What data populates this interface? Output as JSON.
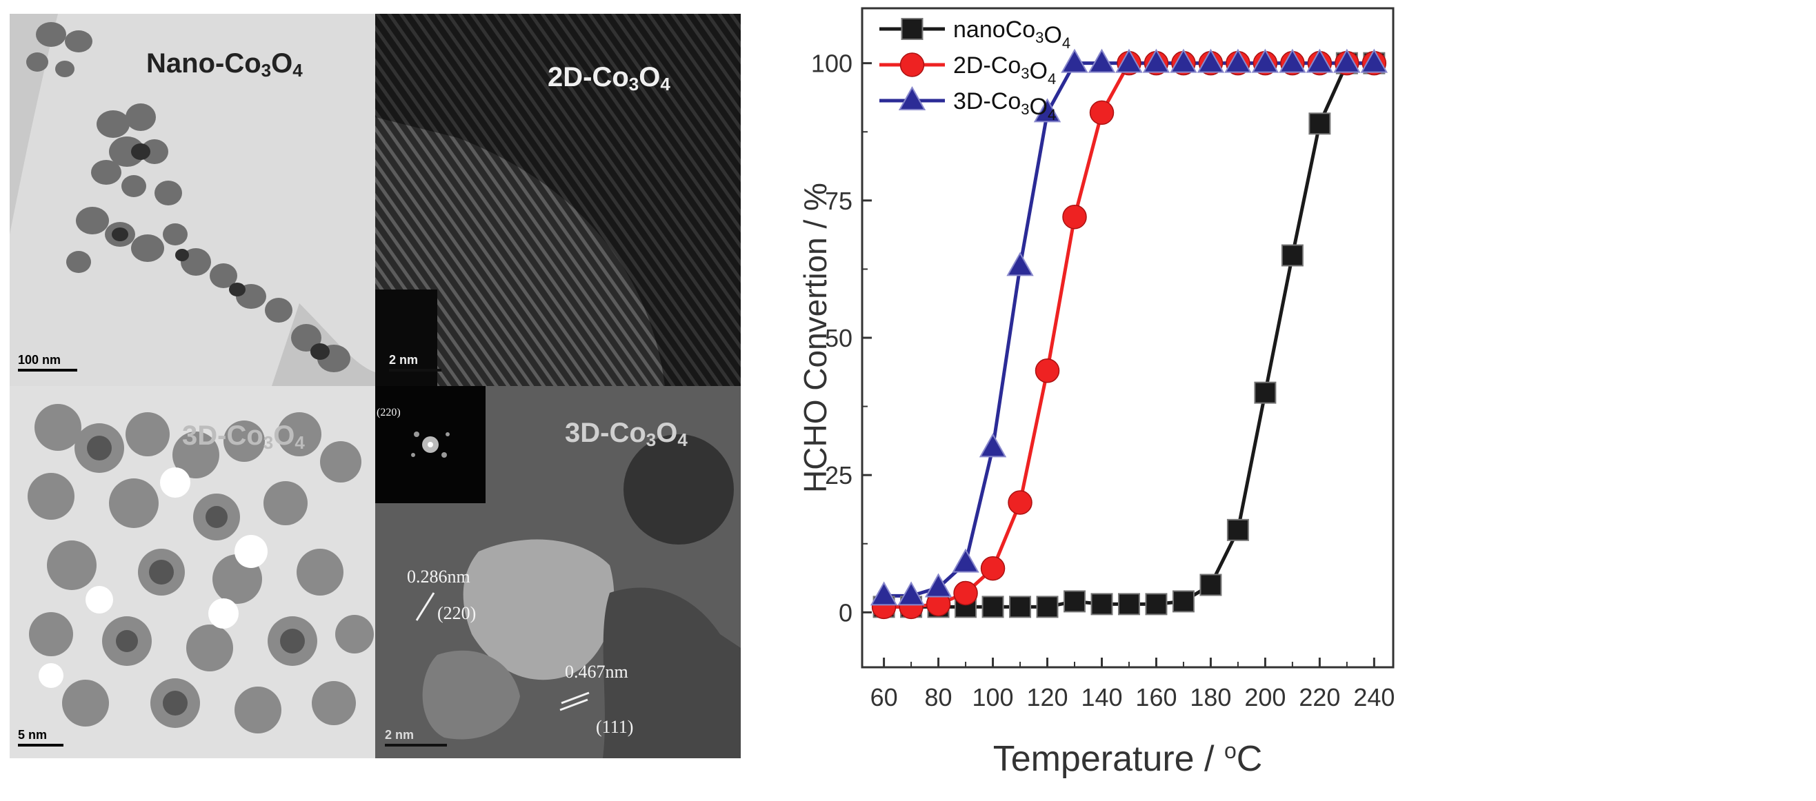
{
  "tem_panels": {
    "top_left": {
      "label_prefix": "Nano-Co",
      "sub1": "3",
      "mid": "O",
      "sub2": "4",
      "scale": "100 nm"
    },
    "top_right": {
      "label_prefix": "2D-Co",
      "sub1": "3",
      "mid": "O",
      "sub2": "4",
      "scale": "2 nm"
    },
    "bottom_left": {
      "label_prefix": "3D-Co",
      "sub1": "3",
      "mid": "O",
      "sub2": "4",
      "scale": "5 nm"
    },
    "bottom_right": {
      "label_prefix": "3D-Co",
      "sub1": "3",
      "mid": "O",
      "sub2": "4",
      "scale": "2 nm",
      "inset_label": "(220)",
      "spacing_1": "0.286nm",
      "plane_1": "(220)",
      "spacing_2": "0.467nm",
      "plane_2": "(111)"
    }
  },
  "chart_data": {
    "type": "line",
    "title": "",
    "xlabel": "Temperature / °C",
    "xlabel_main": "Temperature / ",
    "xlabel_unit": "C",
    "xlabel_degree": "o",
    "ylabel": "HCHO Convertion / %",
    "xlim": [
      52,
      247
    ],
    "ylim": [
      -10,
      110
    ],
    "xticks": [
      60,
      80,
      100,
      120,
      140,
      160,
      180,
      200,
      220,
      240
    ],
    "yticks": [
      0,
      25,
      50,
      75,
      100
    ],
    "x": [
      60,
      70,
      80,
      90,
      100,
      110,
      120,
      130,
      140,
      150,
      160,
      170,
      180,
      190,
      200,
      210,
      220,
      230,
      240
    ],
    "legend_position": "top-left",
    "series": [
      {
        "name": "nanoCo3O4",
        "legend_prefix": "nanoCo",
        "legend_sub1": "3",
        "legend_mid": "O",
        "legend_sub2": "4",
        "color": "#1a1a1a",
        "marker": "square",
        "values": [
          1,
          1,
          1,
          1,
          1,
          1,
          1,
          2,
          1.5,
          1.5,
          1.5,
          2,
          5,
          15,
          40,
          65,
          89,
          100,
          100
        ]
      },
      {
        "name": "2D-Co3O4",
        "legend_prefix": "2D-Co",
        "legend_sub1": "3",
        "legend_mid": "O",
        "legend_sub2": "4",
        "color": "#ee2222",
        "marker": "circle",
        "values": [
          1,
          1,
          1.5,
          3.5,
          8,
          20,
          44,
          72,
          91,
          100,
          100,
          100,
          100,
          100,
          100,
          100,
          100,
          100,
          100
        ]
      },
      {
        "name": "3D-Co3O4",
        "legend_prefix": "3D-Co",
        "legend_sub1": "3",
        "legend_mid": "O",
        "legend_sub2": "4",
        "color": "#2b2b96",
        "marker": "triangle",
        "values": [
          3,
          3,
          4.5,
          9,
          30,
          63,
          91,
          100,
          100,
          100,
          100,
          100,
          100,
          100,
          100,
          100,
          100,
          100,
          100
        ]
      }
    ]
  }
}
